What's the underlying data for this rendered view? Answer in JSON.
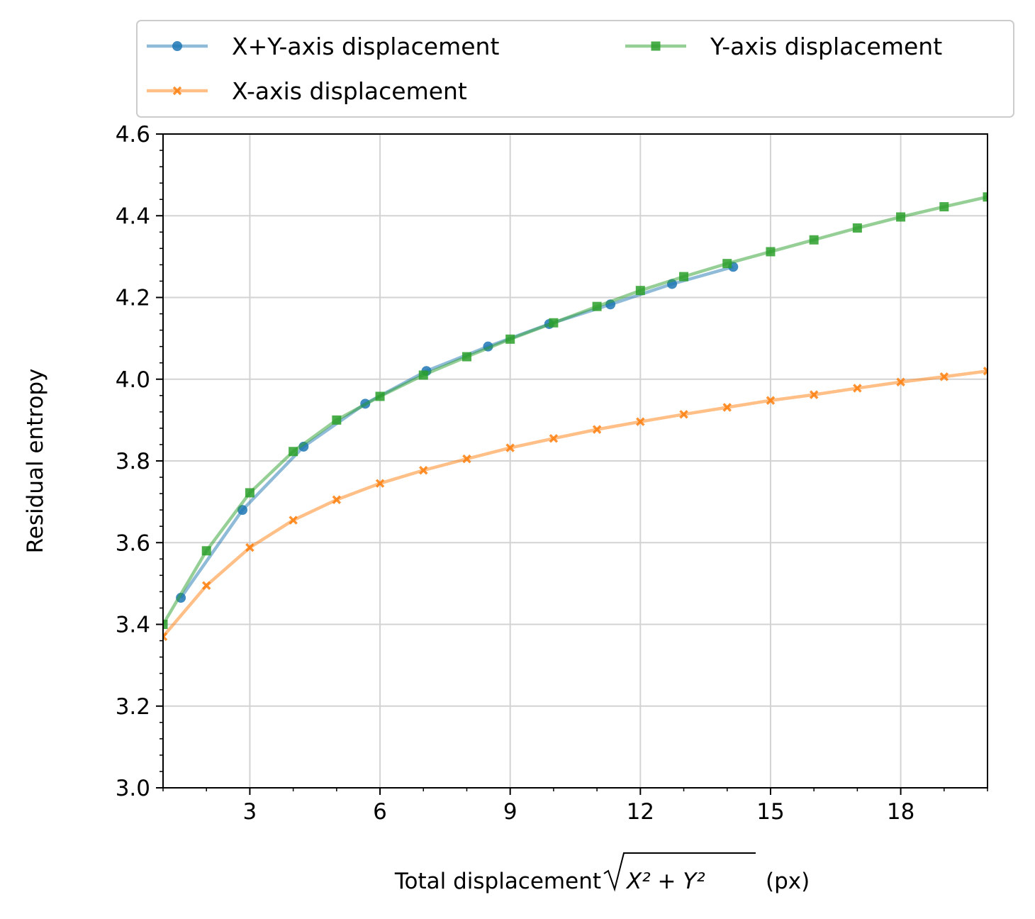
{
  "chart_data": {
    "type": "line",
    "title": "",
    "xlabel": "Total displacement",
    "xlabel_sqrt_term": "X² + Y²",
    "xlabel_unit": "(px)",
    "ylabel": "Residual entropy",
    "xlim": [
      1,
      20
    ],
    "ylim": [
      3.0,
      4.6
    ],
    "x_ticks": [
      3,
      6,
      9,
      12,
      15,
      18
    ],
    "y_ticks": [
      3.0,
      3.2,
      3.4,
      3.6,
      3.8,
      4.0,
      4.2,
      4.4,
      4.6
    ],
    "y_tick_labels": [
      "3.0",
      "3.2",
      "3.4",
      "3.6",
      "3.8",
      "4.0",
      "4.2",
      "4.4",
      "4.6"
    ],
    "grid": true,
    "legend_position": "top, above plot, 2 columns",
    "series": [
      {
        "name": "X+Y-axis displacement",
        "color": "#1f77b4",
        "marker": "circle",
        "x": [
          1.41,
          2.83,
          4.24,
          5.66,
          7.07,
          8.49,
          9.9,
          11.31,
          12.73,
          14.14
        ],
        "y": [
          3.465,
          3.68,
          3.835,
          3.94,
          4.02,
          4.08,
          4.135,
          4.183,
          4.233,
          4.275
        ]
      },
      {
        "name": "X-axis displacement",
        "color": "#ff7f0e",
        "marker": "x",
        "x": [
          1,
          2,
          3,
          4,
          5,
          6,
          7,
          8,
          9,
          10,
          11,
          12,
          13,
          14,
          15,
          16,
          17,
          18,
          19,
          20
        ],
        "y": [
          3.37,
          3.495,
          3.588,
          3.655,
          3.705,
          3.745,
          3.777,
          3.805,
          3.832,
          3.855,
          3.877,
          3.896,
          3.914,
          3.931,
          3.948,
          3.962,
          3.978,
          3.993,
          4.006,
          4.02
        ]
      },
      {
        "name": "Y-axis displacement",
        "color": "#2ca02c",
        "marker": "square",
        "x": [
          1,
          2,
          3,
          4,
          5,
          6,
          7,
          8,
          9,
          10,
          11,
          12,
          13,
          14,
          15,
          16,
          17,
          18,
          19,
          20
        ],
        "y": [
          3.4,
          3.58,
          3.722,
          3.823,
          3.9,
          3.958,
          4.01,
          4.055,
          4.098,
          4.138,
          4.178,
          4.217,
          4.251,
          4.283,
          4.312,
          4.341,
          4.37,
          4.397,
          4.422,
          4.446
        ]
      }
    ]
  }
}
